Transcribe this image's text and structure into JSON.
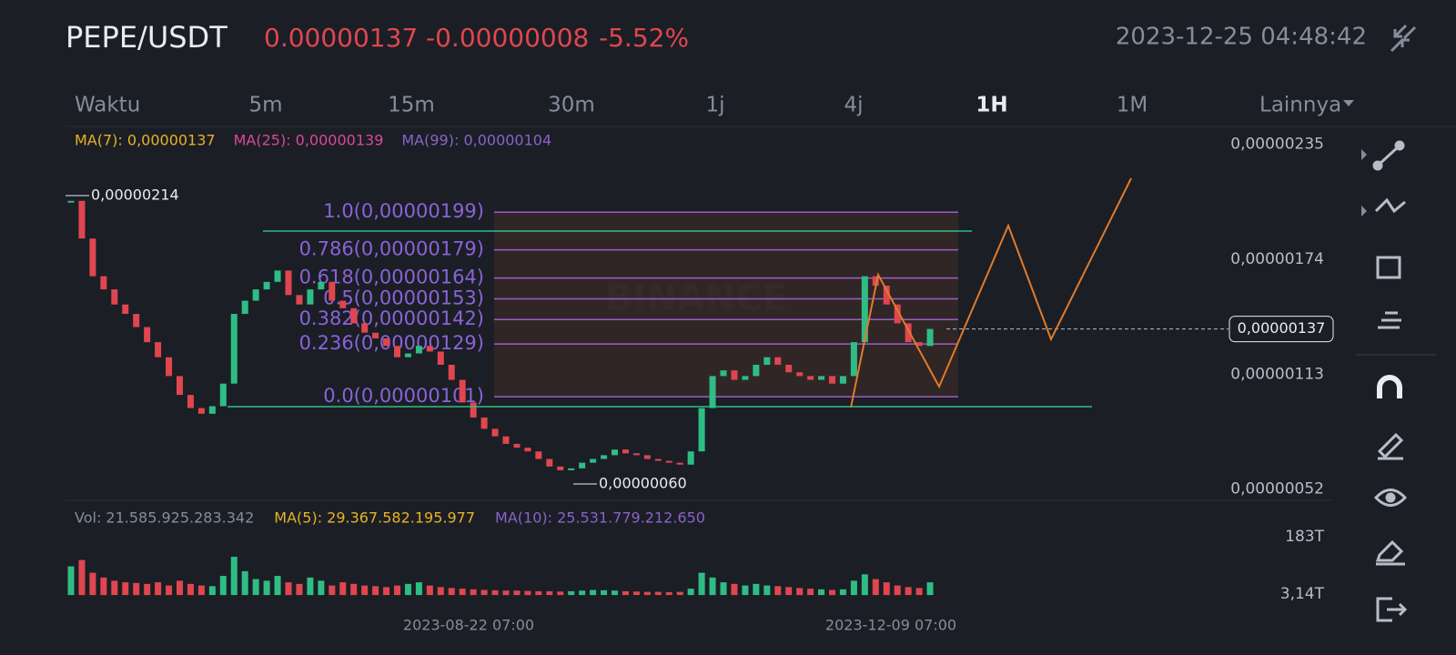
{
  "header": {
    "pair": "PEPE/USDT",
    "price": "0.00000137",
    "change": "-0.00000008",
    "change_pct": "-5.52%",
    "datetime": "2023-12-25 04:48:42"
  },
  "tabs": [
    "Waktu",
    "5m",
    "15m",
    "30m",
    "1j",
    "4j",
    "1H",
    "1M",
    "Lainnya"
  ],
  "price_chart": {
    "type": "candlestick",
    "indicators": [
      {
        "label": "MA(7): 0,00000137",
        "color": "#e6b325"
      },
      {
        "label": "MA(25): 0,00000139",
        "color": "#d9489a"
      },
      {
        "label": "MA(99): 0,00000104",
        "color": "#8a63c8"
      }
    ],
    "ylim": [
      4.7e-07,
      2.44e-06
    ],
    "yticks": [
      {
        "value": 2.35e-06,
        "label": "0,00000235"
      },
      {
        "value": 1.74e-06,
        "label": "0,00000174"
      },
      {
        "value": 1.13e-06,
        "label": "0,00000113"
      },
      {
        "value": 5.2e-07,
        "label": "0,00000052"
      }
    ],
    "closes": [
      2.05e-06,
      1.85e-06,
      1.65e-06,
      1.58e-06,
      1.5e-06,
      1.45e-06,
      1.38e-06,
      1.3e-06,
      1.22e-06,
      1.12e-06,
      1.02e-06,
      9.5e-07,
      9.2e-07,
      9.6e-07,
      1.08e-06,
      1.45e-06,
      1.52e-06,
      1.58e-06,
      1.62e-06,
      1.68e-06,
      1.55e-06,
      1.5e-06,
      1.58e-06,
      1.62e-06,
      1.52e-06,
      1.48e-06,
      1.4e-06,
      1.35e-06,
      1.32e-06,
      1.28e-06,
      1.22e-06,
      1.24e-06,
      1.28e-06,
      1.25e-06,
      1.18e-06,
      1.1e-06,
      9.8e-07,
      9e-07,
      8.4e-07,
      8e-07,
      7.6e-07,
      7.4e-07,
      7.2e-07,
      6.8e-07,
      6.4e-07,
      6.2e-07,
      6.3e-07,
      6.6e-07,
      6.8e-07,
      7e-07,
      7.3e-07,
      7.1e-07,
      7e-07,
      6.8e-07,
      6.7e-07,
      6.6e-07,
      6.5e-07,
      7.2e-07,
      9.5e-07,
      1.12e-06,
      1.15e-06,
      1.1e-06,
      1.12e-06,
      1.18e-06,
      1.22e-06,
      1.18e-06,
      1.14e-06,
      1.12e-06,
      1.1e-06,
      1.12e-06,
      1.08e-06,
      1.12e-06,
      1.3e-06,
      1.65e-06,
      1.6e-06,
      1.5e-06,
      1.4e-06,
      1.3e-06,
      1.28e-06,
      1.37e-06
    ],
    "high_label": "0,00000214",
    "low_label": "0,00000060",
    "current_price": {
      "value": 1.37e-06,
      "label": "0,00000137"
    },
    "fib": [
      {
        "value": 1.99e-06,
        "label": "1.0(0,00000199)"
      },
      {
        "value": 1.79e-06,
        "label": "0.786(0,00000179)"
      },
      {
        "value": 1.64e-06,
        "label": "0.618(0,00000164)"
      },
      {
        "value": 1.53e-06,
        "label": "0.5(0,00000153)"
      },
      {
        "value": 1.42e-06,
        "label": "0.382(0,00000142)"
      },
      {
        "value": 1.29e-06,
        "label": "0.236(0,00000129)"
      },
      {
        "value": 1.01e-06,
        "label": "0.0(0,00000101)"
      }
    ],
    "watermark": "BINANCE"
  },
  "volume": {
    "indicators": [
      {
        "label": "Vol: 21.585.925.283.342",
        "color": "#848e9c"
      },
      {
        "label": "MA(5): 29.367.582.195.977",
        "color": "#e6b325"
      },
      {
        "label": "MA(10): 25.531.779.212.650",
        "color": "#8a63c8"
      }
    ],
    "ylim": [
      -31.1,
      211.5
    ],
    "yticks": [
      {
        "value": 183,
        "label": "183T"
      },
      {
        "value": 3.14,
        "label": "3,14T"
      }
    ],
    "values": [
      90,
      110,
      70,
      55,
      45,
      40,
      38,
      35,
      40,
      30,
      45,
      35,
      30,
      28,
      60,
      120,
      75,
      50,
      45,
      60,
      40,
      35,
      55,
      45,
      30,
      40,
      35,
      30,
      28,
      25,
      30,
      35,
      40,
      30,
      25,
      22,
      20,
      18,
      16,
      15,
      14,
      14,
      13,
      12,
      12,
      11,
      12,
      14,
      16,
      15,
      14,
      12,
      11,
      10,
      10,
      9,
      10,
      20,
      70,
      55,
      40,
      35,
      30,
      35,
      30,
      28,
      25,
      22,
      20,
      18,
      16,
      18,
      45,
      65,
      50,
      40,
      30,
      25,
      22,
      40
    ]
  },
  "time_labels": [
    "2023-08-22 07:00",
    "2023-12-09 07:00"
  ]
}
